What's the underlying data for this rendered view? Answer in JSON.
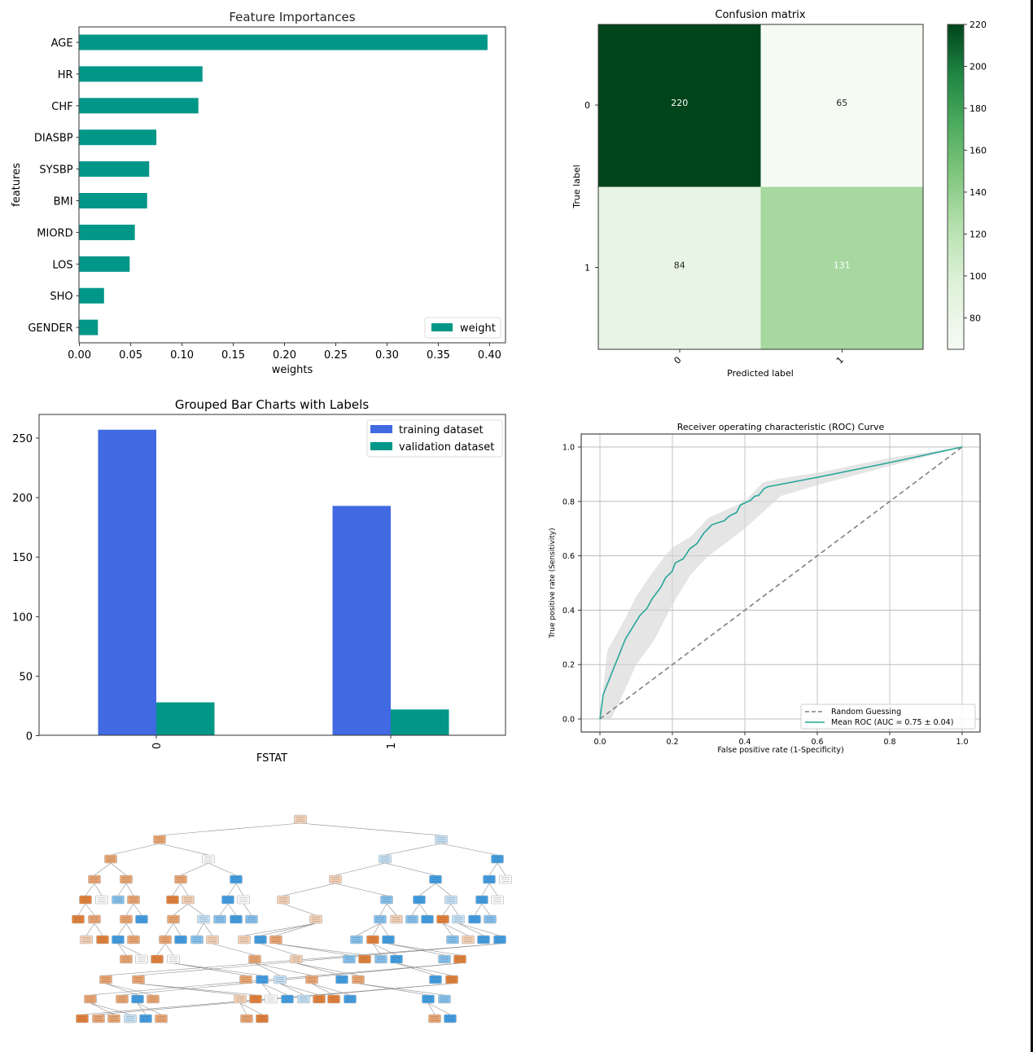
{
  "chart_data": [
    {
      "type": "bar",
      "orientation": "horizontal",
      "title": "Feature Importances",
      "xlabel": "weights",
      "ylabel": "features",
      "categories": [
        "AGE",
        "HR",
        "CHF",
        "DIASBP",
        "SYSBP",
        "BMI",
        "MIORD",
        "LOS",
        "SHO",
        "GENDER"
      ],
      "series": [
        {
          "name": "weight",
          "color": "#009688",
          "values": [
            0.398,
            0.12,
            0.116,
            0.075,
            0.068,
            0.066,
            0.054,
            0.049,
            0.024,
            0.018
          ]
        }
      ],
      "xlim": [
        0.0,
        0.42
      ],
      "xticks": [
        "0.00",
        "0.05",
        "0.10",
        "0.15",
        "0.20",
        "0.25",
        "0.30",
        "0.35",
        "0.40"
      ],
      "legend": {
        "position": "lower-right",
        "entries": [
          "weight"
        ]
      },
      "grid": false
    },
    {
      "type": "heatmap",
      "title": "Confusion matrix",
      "xlabel": "Predicted label",
      "ylabel": "True label",
      "x_categories": [
        "0",
        "1"
      ],
      "y_categories": [
        "0",
        "1"
      ],
      "values": [
        [
          220,
          65
        ],
        [
          84,
          131
        ]
      ],
      "colormap": "Greens",
      "colorbar": {
        "min": 65,
        "max": 220,
        "ticks": [
          "80",
          "100",
          "120",
          "140",
          "160",
          "180",
          "200",
          "220"
        ]
      }
    },
    {
      "type": "bar",
      "title": "Grouped Bar Charts with Labels",
      "xlabel": "FSTAT",
      "ylabel": "",
      "categories": [
        "0",
        "1"
      ],
      "series": [
        {
          "name": "training dataset",
          "color": "#4169e1",
          "values": [
            257,
            193
          ]
        },
        {
          "name": "validation dataset",
          "color": "#009688",
          "values": [
            28,
            22
          ]
        }
      ],
      "ylim": [
        0,
        270
      ],
      "yticks": [
        "0",
        "50",
        "100",
        "150",
        "200",
        "250"
      ],
      "legend": {
        "position": "top-right",
        "entries": [
          "training dataset",
          "validation dataset"
        ]
      },
      "grid": false
    },
    {
      "type": "line",
      "title": "Receiver operating characteristic (ROC) Curve",
      "xlabel": "False positive rate (1-Specificity)",
      "ylabel": "True positive rate (Sensitivity)",
      "xlim": [
        -0.05,
        1.05
      ],
      "ylim": [
        -0.05,
        1.05
      ],
      "xticks": [
        "0.0",
        "0.2",
        "0.4",
        "0.6",
        "0.8",
        "1.0"
      ],
      "yticks": [
        "0.0",
        "0.2",
        "0.4",
        "0.6",
        "0.8",
        "1.0"
      ],
      "grid": true,
      "series": [
        {
          "name": "Random Guessing",
          "style": "dashed",
          "color": "#808080",
          "x": [
            0.0,
            1.0
          ],
          "y": [
            0.0,
            1.0
          ]
        },
        {
          "name": "Mean ROC (AUC = 0.75 ± 0.04)",
          "style": "solid",
          "color": "#26a69a",
          "x": [
            0.0,
            0.009,
            0.07,
            0.11,
            0.13,
            0.145,
            0.168,
            0.181,
            0.199,
            0.208,
            0.23,
            0.248,
            0.268,
            0.287,
            0.309,
            0.343,
            0.357,
            0.377,
            0.388,
            0.416,
            0.427,
            0.438,
            0.453,
            0.464,
            0.594,
            0.797,
            1.0
          ],
          "y": [
            0.0,
            0.09,
            0.293,
            0.38,
            0.407,
            0.444,
            0.484,
            0.519,
            0.542,
            0.574,
            0.589,
            0.626,
            0.645,
            0.684,
            0.714,
            0.729,
            0.746,
            0.759,
            0.787,
            0.804,
            0.819,
            0.822,
            0.847,
            0.854,
            0.887,
            0.942,
            1.0
          ]
        }
      ],
      "band": {
        "color": "#d3d3d3",
        "upper": {
          "x": [
            0.0,
            0.02,
            0.07,
            0.1,
            0.14,
            0.18,
            0.2,
            0.25,
            0.3,
            0.35,
            0.4,
            0.45,
            0.5,
            0.6,
            0.8,
            1.0
          ],
          "y": [
            0.0,
            0.25,
            0.37,
            0.45,
            0.53,
            0.6,
            0.63,
            0.67,
            0.74,
            0.77,
            0.8,
            0.87,
            0.885,
            0.905,
            0.96,
            1.0
          ]
        },
        "lower": {
          "x": [
            0.0,
            0.03,
            0.05,
            0.1,
            0.15,
            0.2,
            0.25,
            0.3,
            0.35,
            0.4,
            0.45,
            0.5,
            0.6,
            0.8,
            1.0
          ],
          "y": [
            0.0,
            0.0,
            0.05,
            0.2,
            0.29,
            0.42,
            0.53,
            0.6,
            0.65,
            0.7,
            0.76,
            0.82,
            0.86,
            0.93,
            1.0
          ]
        }
      },
      "legend": {
        "position": "lower-right",
        "entries": [
          "Random Guessing",
          "Mean ROC (AUC = 0.75 ± 0.04)"
        ]
      }
    }
  ],
  "tree": {
    "colors": {
      "orange": "#e58139",
      "orange_mid": "#eca571",
      "orange_light": "#f5d1b6",
      "neutral": "#fbfbfb",
      "blue_light": "#c4e1f6",
      "blue_mid": "#86c2ef",
      "blue": "#3f9ee5"
    }
  }
}
